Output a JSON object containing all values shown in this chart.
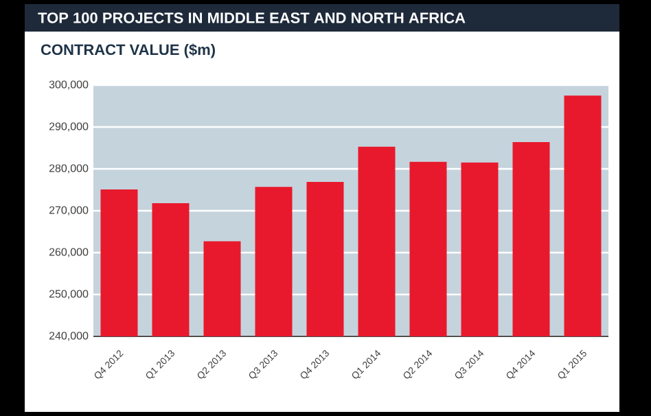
{
  "chart_data": {
    "type": "bar",
    "title": "TOP 100 PROJECTS IN MIDDLE EAST AND NORTH AFRICA",
    "subtitle": "CONTRACT VALUE ($m)",
    "categories": [
      "Q4 2012",
      "Q1 2013",
      "Q2 2013",
      "Q3 2013",
      "Q4 2013",
      "Q1 2014",
      "Q2 2014",
      "Q3 2014",
      "Q4 2014",
      "Q1 2015"
    ],
    "values": [
      275100,
      271800,
      262700,
      275700,
      276900,
      285300,
      281700,
      281500,
      286400,
      297500
    ],
    "color": "#e8192c",
    "ylim": [
      240000,
      300000
    ],
    "yticks": [
      {
        "value": 240000,
        "label": "240,000"
      },
      {
        "value": 250000,
        "label": "250,000"
      },
      {
        "value": 260000,
        "label": "260,000"
      },
      {
        "value": 270000,
        "label": "270,000"
      },
      {
        "value": 280000,
        "label": "280,000"
      },
      {
        "value": 290000,
        "label": "290,000"
      },
      {
        "value": 300000,
        "label": "300,000"
      }
    ],
    "grid": "y"
  }
}
